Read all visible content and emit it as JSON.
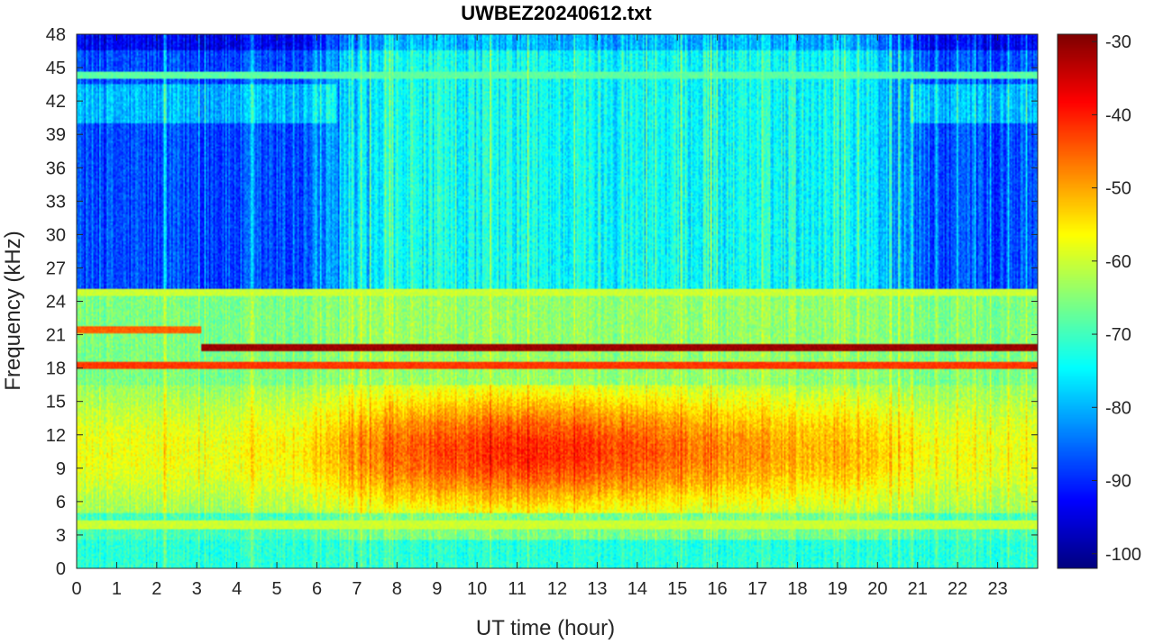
{
  "chart_data": {
    "type": "heatmap",
    "title": "UWBEZ20240612.txt",
    "xlabel": "UT time (hour)",
    "ylabel": "Frequency (kHz)",
    "xlim": [
      0,
      24
    ],
    "ylim": [
      0,
      48
    ],
    "x_ticks": [
      "0",
      "1",
      "2",
      "3",
      "4",
      "5",
      "6",
      "7",
      "8",
      "9",
      "10",
      "11",
      "12",
      "13",
      "14",
      "15",
      "16",
      "17",
      "18",
      "19",
      "20",
      "21",
      "22",
      "23"
    ],
    "y_ticks": [
      "0",
      "3",
      "6",
      "9",
      "12",
      "15",
      "18",
      "21",
      "24",
      "27",
      "30",
      "33",
      "36",
      "39",
      "42",
      "45",
      "48"
    ],
    "colorbar": {
      "colormap": "jet",
      "clim": [
        -102,
        -29
      ],
      "ticks": [
        "-30",
        "-40",
        "-50",
        "-60",
        "-70",
        "-80",
        "-90",
        "-100"
      ]
    },
    "features": [
      {
        "description": "strong narrowband transmitter line",
        "freq_khz": 19.8,
        "start_hour": 3.1,
        "end_hour": 24,
        "level_db": -31
      },
      {
        "description": "narrowband line",
        "freq_khz": 21.4,
        "start_hour": 0,
        "end_hour": 3.1,
        "level_db": -45
      },
      {
        "description": "narrowband line",
        "freq_khz": 18.2,
        "start_hour": 0,
        "end_hour": 24,
        "level_db": -42
      },
      {
        "description": "narrowband line",
        "freq_khz": 24.8,
        "start_hour": 0,
        "end_hour": 24,
        "level_db": -60
      },
      {
        "description": "narrowband line",
        "freq_khz": 44.3,
        "start_hour": 0,
        "end_hour": 24,
        "level_db": -68
      },
      {
        "description": "narrowband line",
        "freq_khz": 3.9,
        "start_hour": 0,
        "end_hour": 24,
        "level_db": -60
      },
      {
        "description": "daytime broadband enhancement",
        "freq_range_khz": [
          5,
          16
        ],
        "peak_hour": 11.5,
        "level_db": -45
      },
      {
        "description": "night low-level background",
        "freq_range_khz": [
          25,
          48
        ],
        "hours": [
          [
            0,
            6.5
          ],
          [
            20.5,
            24
          ]
        ],
        "level_db": -88
      }
    ]
  }
}
